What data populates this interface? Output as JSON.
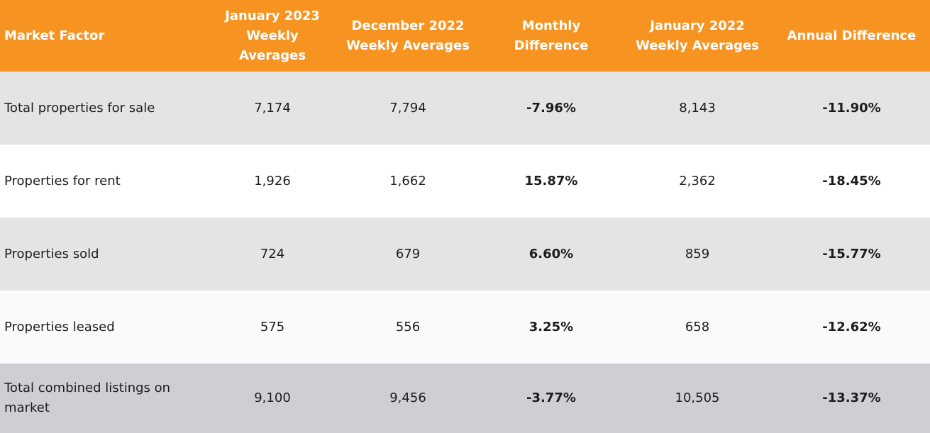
{
  "header": {
    "market_factor": "Market Factor",
    "jan_2023": "January 2023\nWeekly Averages",
    "dec_2022": "December 2022\nWeekly Averages",
    "monthly_diff": "Monthly Difference",
    "jan_2022": "January 2022\nWeekly Averages",
    "annual_diff": "Annual Difference"
  },
  "rows": [
    {
      "factor": "Total properties for sale",
      "jan_2023": "7,174",
      "dec_2022": "7,794",
      "monthly_diff": "-7.96%",
      "jan_2022": "8,143",
      "annual_diff": "-11.90%"
    },
    {
      "factor": "Properties for rent",
      "jan_2023": "1,926",
      "dec_2022": "1,662",
      "monthly_diff": "15.87%",
      "jan_2022": "2,362",
      "annual_diff": "-18.45%"
    },
    {
      "factor": "Properties sold",
      "jan_2023": "724",
      "dec_2022": "679",
      "monthly_diff": "6.60%",
      "jan_2022": "859",
      "annual_diff": "-15.77%"
    },
    {
      "factor": "Properties leased",
      "jan_2023": "575",
      "dec_2022": "556",
      "monthly_diff": "3.25%",
      "jan_2022": "658",
      "annual_diff": "-12.62%"
    },
    {
      "factor": "Total combined listings on market",
      "jan_2023": "9,100",
      "dec_2022": "9,456",
      "monthly_diff": "-3.77%",
      "jan_2022": "10,505",
      "annual_diff": "-13.37%"
    }
  ],
  "colors": {
    "header_bg": "#f69321",
    "header_text": "#ffffff",
    "row_gray": "#e4e4e4",
    "row_white": "#ffffff",
    "row_dark_gray": "#cfced3"
  }
}
